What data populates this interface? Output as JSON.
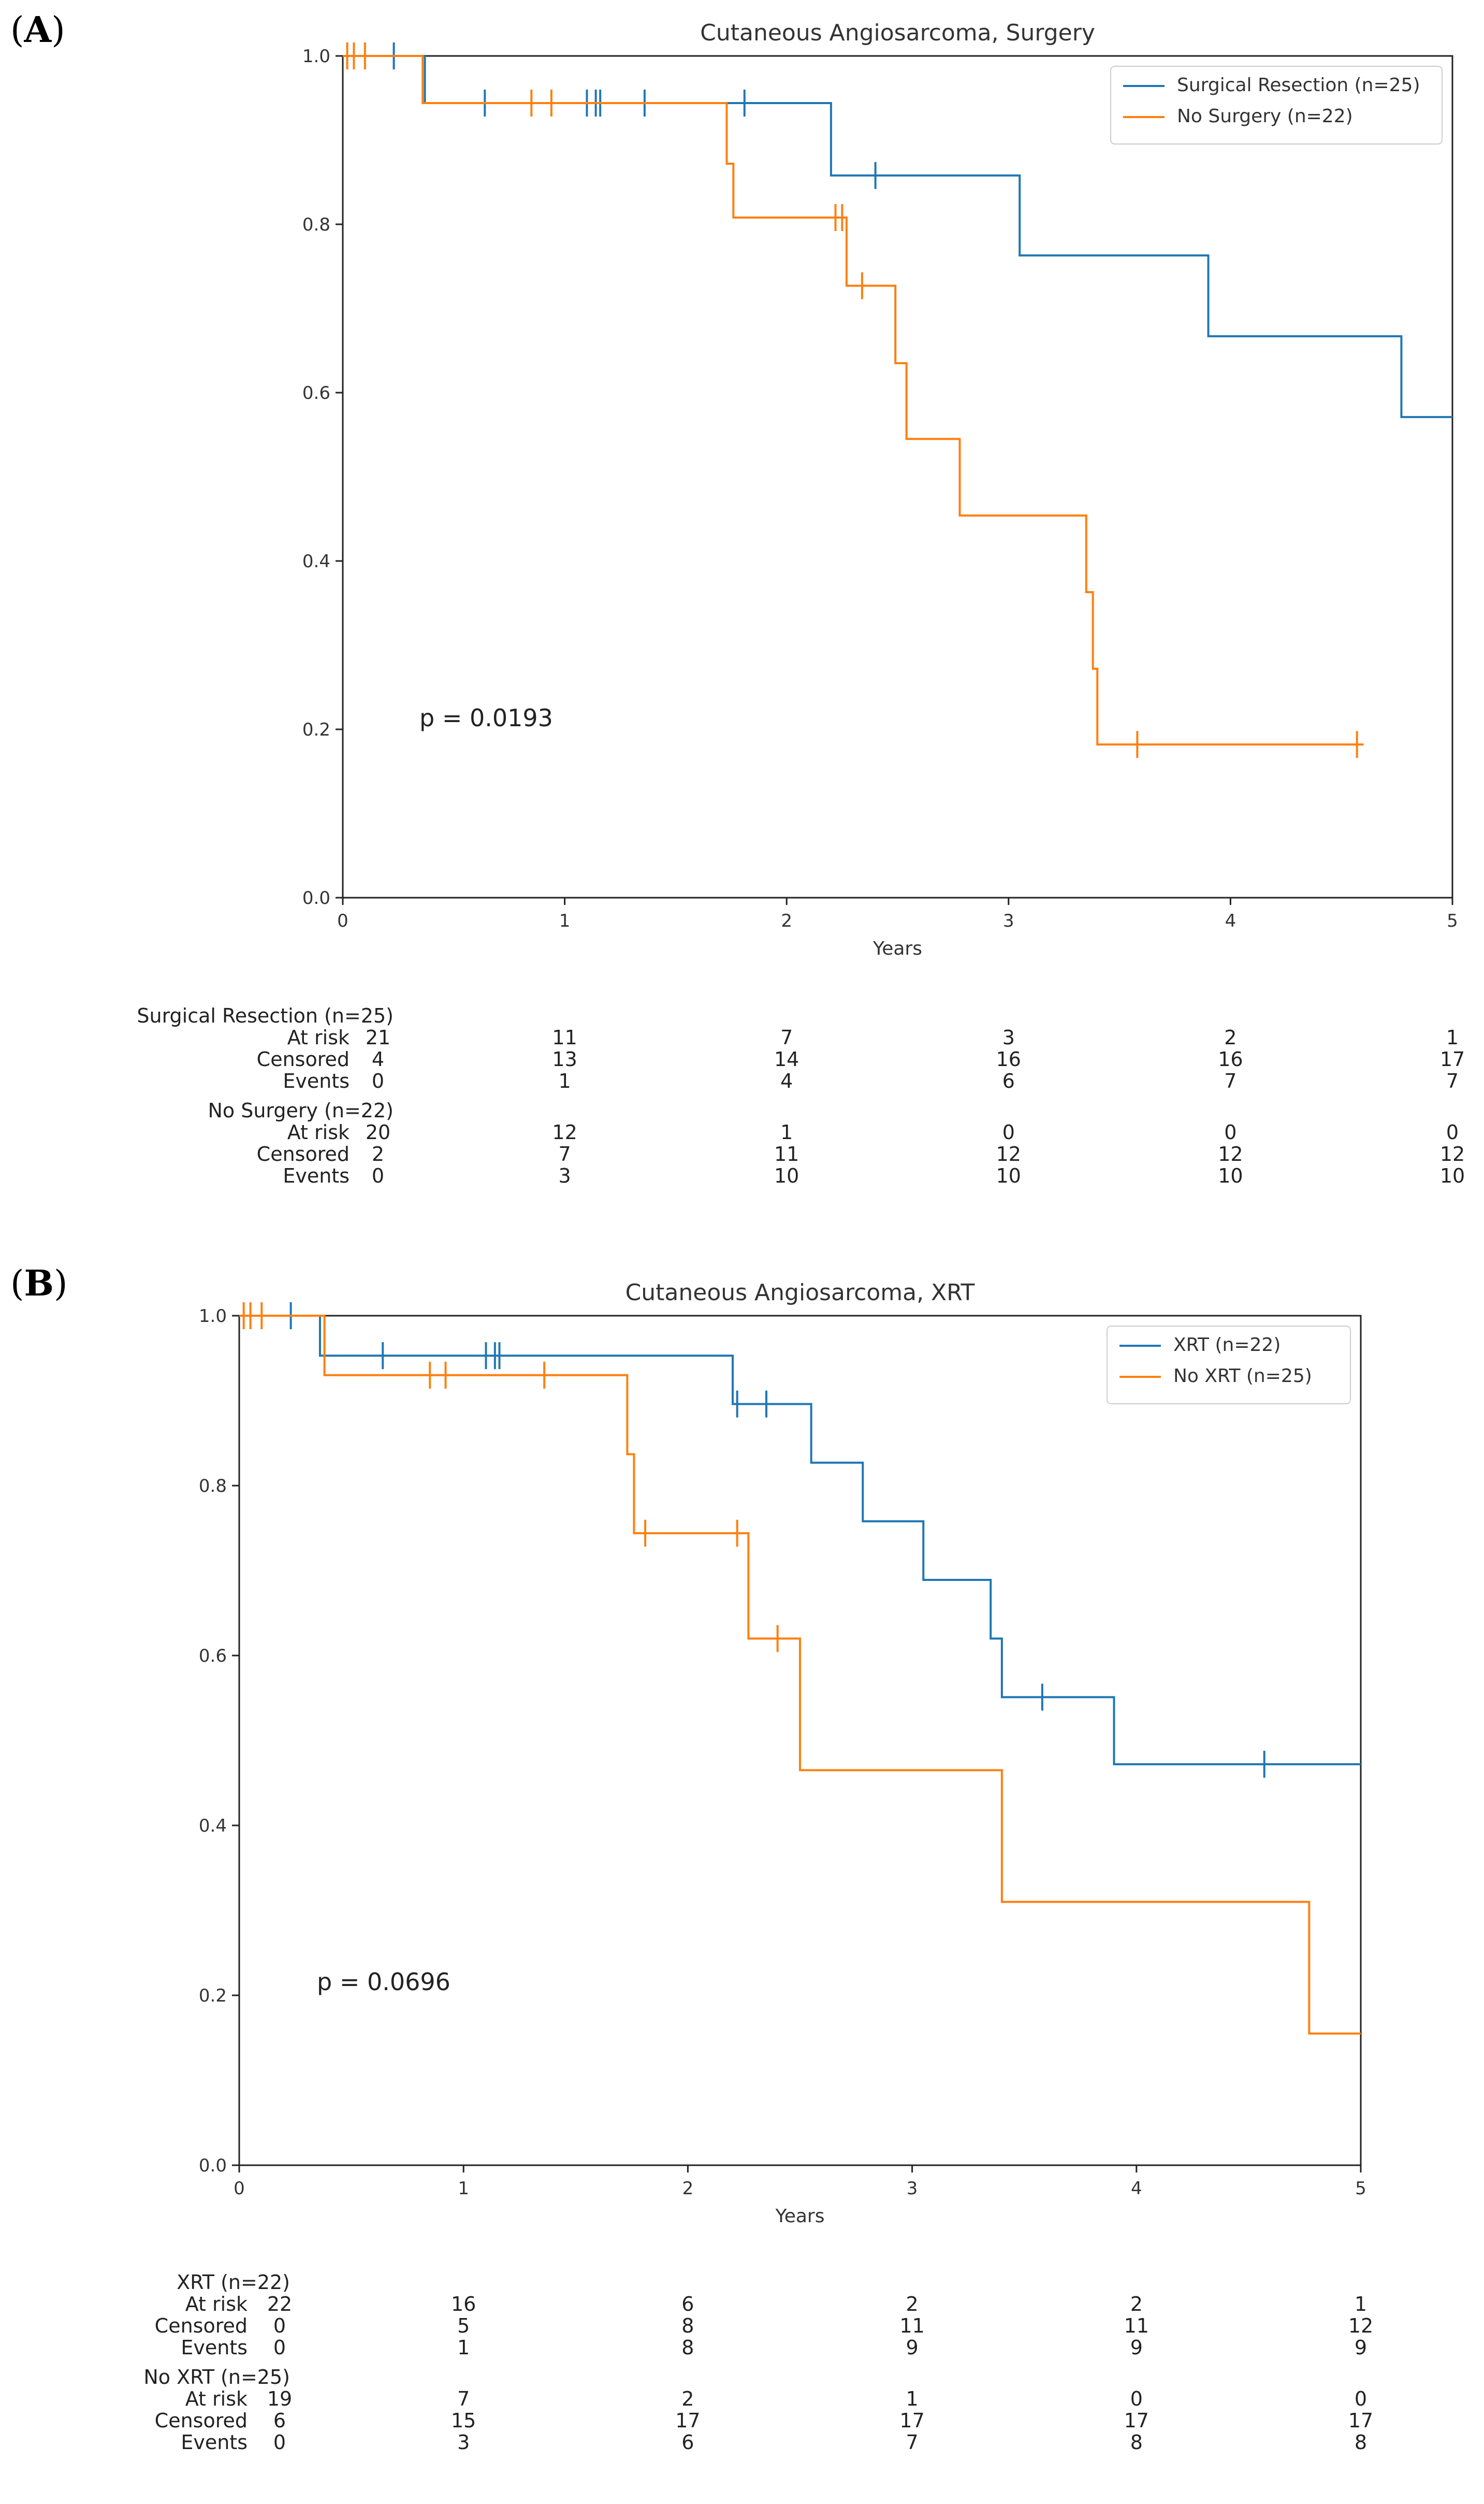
{
  "chart_data": [
    {
      "type": "line",
      "panel": "A",
      "title": "Cutaneous Angiosarcoma, Surgery",
      "xlabel": "Years",
      "ylabel": "",
      "xlim": [
        0,
        5
      ],
      "ylim": [
        0,
        1
      ],
      "xticks": [
        "0",
        "1",
        "2",
        "3",
        "4",
        "5"
      ],
      "yticks": [
        "0.0",
        "0.2",
        "0.4",
        "0.6",
        "0.8",
        "1.0"
      ],
      "annotation": "p = 0.0193",
      "legend_position": "top-right",
      "series": [
        {
          "name": "Surgical Resection (n=25)",
          "color": "#1f77b4",
          "steps": [
            [
              0,
              1.0
            ],
            [
              0.37,
              0.944
            ],
            [
              2.2,
              0.858
            ],
            [
              3.05,
              0.763
            ],
            [
              3.9,
              0.667
            ],
            [
              4.77,
              0.571
            ],
            [
              5.0,
              0.571
            ]
          ],
          "censored": [
            [
              0.23,
              1.0
            ],
            [
              0.64,
              0.944
            ],
            [
              1.1,
              0.944
            ],
            [
              1.14,
              0.944
            ],
            [
              1.16,
              0.944
            ],
            [
              1.36,
              0.944
            ],
            [
              1.81,
              0.944
            ],
            [
              2.4,
              0.858
            ]
          ]
        },
        {
          "name": "No Surgery (n=22)",
          "color": "#ff7f0e",
          "steps": [
            [
              0,
              1.0
            ],
            [
              0.36,
              0.944
            ],
            [
              1.73,
              0.872
            ],
            [
              1.76,
              0.808
            ],
            [
              2.27,
              0.727
            ],
            [
              2.49,
              0.635
            ],
            [
              2.54,
              0.545
            ],
            [
              2.78,
              0.454
            ],
            [
              3.35,
              0.363
            ],
            [
              3.38,
              0.272
            ],
            [
              3.4,
              0.182
            ],
            [
              4.6,
              0.182
            ]
          ],
          "censored": [
            [
              0.02,
              1.0
            ],
            [
              0.05,
              1.0
            ],
            [
              0.1,
              1.0
            ],
            [
              0.85,
              0.944
            ],
            [
              0.94,
              0.944
            ],
            [
              2.22,
              0.808
            ],
            [
              2.25,
              0.808
            ],
            [
              2.34,
              0.727
            ],
            [
              3.58,
              0.182
            ],
            [
              4.57,
              0.182
            ]
          ]
        }
      ],
      "risk_table": {
        "times": [
          "0",
          "1",
          "2",
          "3",
          "4",
          "5"
        ],
        "groups": [
          {
            "title": "Surgical Resection (n=25)",
            "rows": [
              {
                "label": "At risk",
                "values": [
                  "21",
                  "11",
                  "7",
                  "3",
                  "2",
                  "1"
                ]
              },
              {
                "label": "Censored",
                "values": [
                  "4",
                  "13",
                  "14",
                  "16",
                  "16",
                  "17"
                ]
              },
              {
                "label": "Events",
                "values": [
                  "0",
                  "1",
                  "4",
                  "6",
                  "7",
                  "7"
                ]
              }
            ]
          },
          {
            "title": "No Surgery (n=22)",
            "rows": [
              {
                "label": "At risk",
                "values": [
                  "20",
                  "12",
                  "1",
                  "0",
                  "0",
                  "0"
                ]
              },
              {
                "label": "Censored",
                "values": [
                  "2",
                  "7",
                  "11",
                  "12",
                  "12",
                  "12"
                ]
              },
              {
                "label": "Events",
                "values": [
                  "0",
                  "3",
                  "10",
                  "10",
                  "10",
                  "10"
                ]
              }
            ]
          }
        ]
      }
    },
    {
      "type": "line",
      "panel": "B",
      "title": "Cutaneous Angiosarcoma, XRT",
      "xlabel": "Years",
      "ylabel": "",
      "xlim": [
        0,
        5
      ],
      "ylim": [
        0,
        1
      ],
      "xticks": [
        "0",
        "1",
        "2",
        "3",
        "4",
        "5"
      ],
      "yticks": [
        "0.0",
        "0.2",
        "0.4",
        "0.6",
        "0.8",
        "1.0"
      ],
      "annotation": "p = 0.0696",
      "legend_position": "top-right",
      "series": [
        {
          "name": "XRT (n=22)",
          "color": "#1f77b4",
          "steps": [
            [
              0,
              1.0
            ],
            [
              0.36,
              0.953
            ],
            [
              2.2,
              0.896
            ],
            [
              2.55,
              0.827
            ],
            [
              2.78,
              0.758
            ],
            [
              3.05,
              0.689
            ],
            [
              3.35,
              0.62
            ],
            [
              3.4,
              0.551
            ],
            [
              3.9,
              0.472
            ],
            [
              5.0,
              0.472
            ]
          ],
          "censored": [
            [
              0.23,
              1.0
            ],
            [
              0.64,
              0.953
            ],
            [
              1.1,
              0.953
            ],
            [
              1.14,
              0.953
            ],
            [
              1.16,
              0.953
            ],
            [
              2.22,
              0.896
            ],
            [
              2.35,
              0.896
            ],
            [
              3.58,
              0.551
            ],
            [
              4.57,
              0.472
            ]
          ]
        },
        {
          "name": "No XRT (n=25)",
          "color": "#ff7f0e",
          "steps": [
            [
              0,
              1.0
            ],
            [
              0.38,
              0.93
            ],
            [
              1.73,
              0.837
            ],
            [
              1.76,
              0.744
            ],
            [
              2.27,
              0.62
            ],
            [
              2.5,
              0.465
            ],
            [
              3.4,
              0.31
            ],
            [
              4.77,
              0.155
            ],
            [
              5.0,
              0.155
            ]
          ],
          "censored": [
            [
              0.02,
              1.0
            ],
            [
              0.05,
              1.0
            ],
            [
              0.1,
              1.0
            ],
            [
              0.85,
              0.93
            ],
            [
              0.92,
              0.93
            ],
            [
              1.36,
              0.93
            ],
            [
              1.81,
              0.744
            ],
            [
              2.22,
              0.744
            ],
            [
              2.4,
              0.62
            ]
          ]
        }
      ],
      "risk_table": {
        "times": [
          "0",
          "1",
          "2",
          "3",
          "4",
          "5"
        ],
        "groups": [
          {
            "title": "XRT (n=22)",
            "rows": [
              {
                "label": "At risk",
                "values": [
                  "22",
                  "16",
                  "6",
                  "2",
                  "2",
                  "1"
                ]
              },
              {
                "label": "Censored",
                "values": [
                  "0",
                  "5",
                  "8",
                  "11",
                  "11",
                  "12"
                ]
              },
              {
                "label": "Events",
                "values": [
                  "0",
                  "1",
                  "8",
                  "9",
                  "9",
                  "9"
                ]
              }
            ]
          },
          {
            "title": "No XRT (n=25)",
            "rows": [
              {
                "label": "At risk",
                "values": [
                  "19",
                  "7",
                  "2",
                  "1",
                  "0",
                  "0"
                ]
              },
              {
                "label": "Censored",
                "values": [
                  "6",
                  "15",
                  "17",
                  "17",
                  "17",
                  "17"
                ]
              },
              {
                "label": "Events",
                "values": [
                  "0",
                  "3",
                  "6",
                  "7",
                  "8",
                  "8"
                ]
              }
            ]
          }
        ]
      }
    }
  ],
  "panels": [
    {
      "label": "A"
    },
    {
      "label": "B"
    }
  ]
}
